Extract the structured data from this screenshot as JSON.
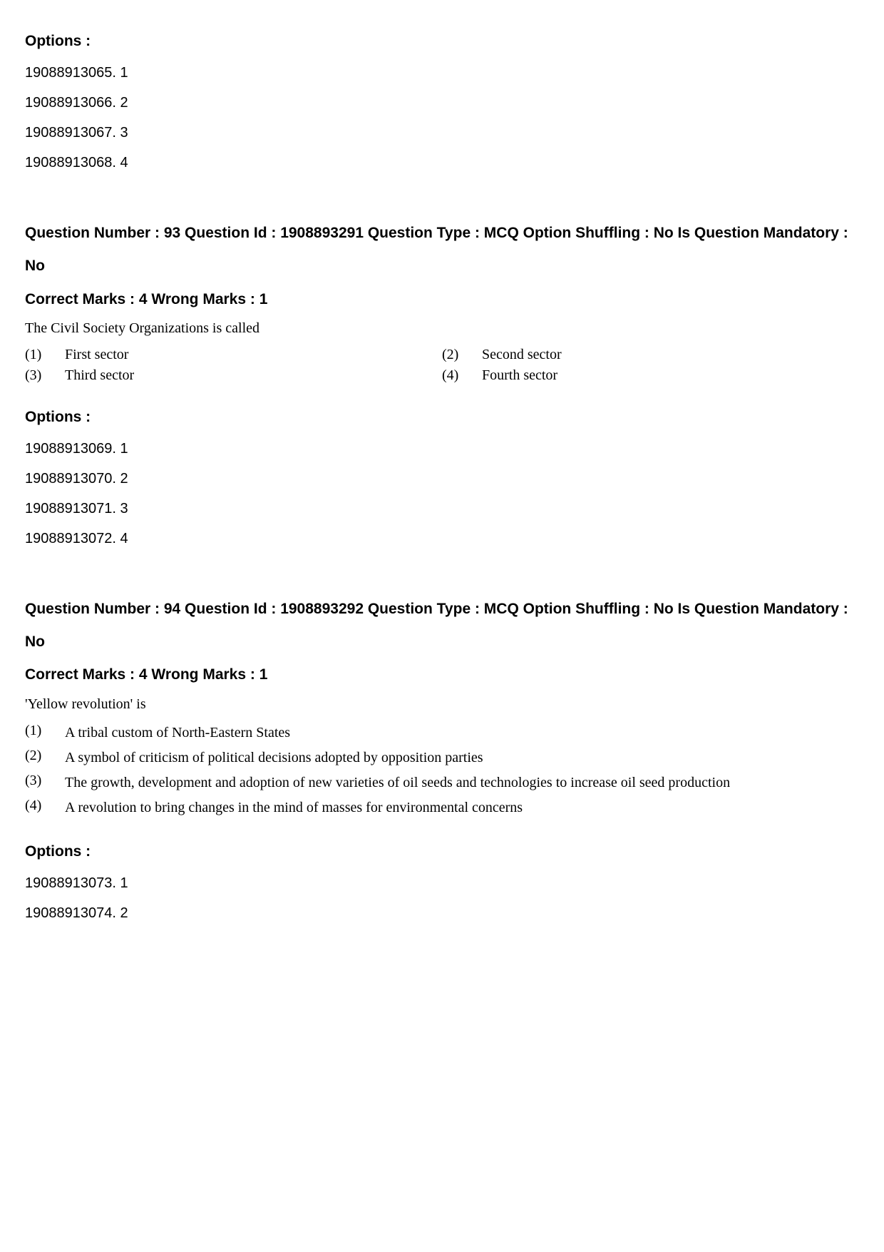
{
  "block1": {
    "options_label": "Options :",
    "options": [
      {
        "id": "19088913065.",
        "num": "1"
      },
      {
        "id": "19088913066.",
        "num": "2"
      },
      {
        "id": "19088913067.",
        "num": "3"
      },
      {
        "id": "19088913068.",
        "num": "4"
      }
    ]
  },
  "q93": {
    "meta_line": "Question Number : 93 Question Id : 1908893291 Question Type : MCQ Option Shuffling : No Is Question Mandatory : No",
    "marks_line": "Correct Marks : 4 Wrong Marks : 1",
    "question_text": "The Civil Society Organizations is called",
    "choices": [
      {
        "n": "(1)",
        "t": "First sector"
      },
      {
        "n": "(2)",
        "t": "Second sector"
      },
      {
        "n": "(3)",
        "t": "Third sector"
      },
      {
        "n": "(4)",
        "t": "Fourth sector"
      }
    ],
    "options_label": "Options :",
    "options": [
      {
        "id": "19088913069.",
        "num": "1"
      },
      {
        "id": "19088913070.",
        "num": "2"
      },
      {
        "id": "19088913071.",
        "num": "3"
      },
      {
        "id": "19088913072.",
        "num": "4"
      }
    ]
  },
  "q94": {
    "meta_line": "Question Number : 94 Question Id : 1908893292 Question Type : MCQ Option Shuffling : No Is Question Mandatory : No",
    "marks_line": "Correct Marks : 4 Wrong Marks : 1",
    "question_text": "'Yellow revolution' is",
    "choices": [
      {
        "n": "(1)",
        "t": "A tribal custom of North-Eastern States"
      },
      {
        "n": "(2)",
        "t": "A symbol of criticism of political decisions adopted by opposition parties"
      },
      {
        "n": "(3)",
        "t": "The growth, development and adoption of new varieties of oil seeds and technologies to increase oil seed production"
      },
      {
        "n": "(4)",
        "t": "A revolution to bring changes in the mind of masses for environmental concerns"
      }
    ],
    "options_label": "Options :",
    "options": [
      {
        "id": "19088913073.",
        "num": "1"
      },
      {
        "id": "19088913074.",
        "num": "2"
      }
    ]
  }
}
